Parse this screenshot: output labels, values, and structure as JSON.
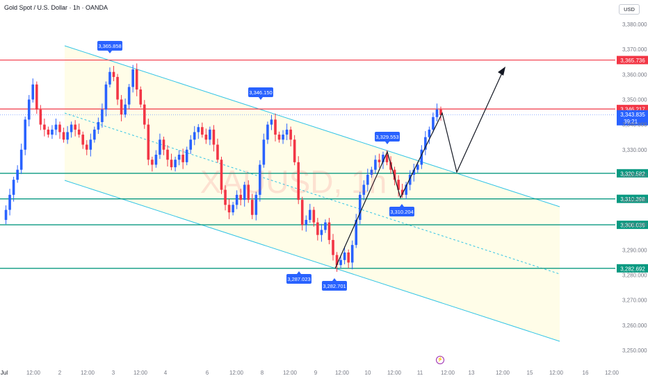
{
  "header": {
    "title": "Gold Spot / U.S. Dollar · 1h · OANDA",
    "currency_button": "USD"
  },
  "watermark": "XAUUSD, 1h",
  "colors": {
    "background": "#ffffff",
    "up": "#2962ff",
    "down": "#f23645",
    "channel": "#31c4e6",
    "channel_fill": "#fffde8",
    "red_line": "#f23645",
    "green_line": "#089981",
    "callout": "#2962ff",
    "axis_text": "#787b86",
    "grid": "#f0f3fa"
  },
  "chart_data": {
    "type": "candlestick",
    "y_axis_range": [
      3248,
      3389
    ],
    "y_ticks": [
      "3,380.000",
      "3,370.000",
      "3,360.000",
      "3,350.000",
      "3,340.000",
      "3,330.000",
      "3,320.000",
      "3,310.000",
      "3,300.000",
      "3,290.000",
      "3,280.000",
      "3,270.000",
      "3,260.000",
      "3,250.000"
    ],
    "x_ticks": [
      "Jul",
      "12:00",
      "2",
      "12:00",
      "3",
      "12:00",
      "4",
      "6",
      "12:00",
      "8",
      "12:00",
      "9",
      "12:00",
      "10",
      "12:00",
      "11",
      "12:00",
      "13",
      "12:00",
      "15",
      "12:00",
      "16",
      "12:00"
    ],
    "horizontal_levels": [
      {
        "value": 3365.736,
        "label": "3,365.736",
        "color": "red"
      },
      {
        "value": 3346.217,
        "label": "3,346.217",
        "color": "red"
      },
      {
        "value": 3320.582,
        "label": "3,320.582",
        "color": "green"
      },
      {
        "value": 3310.398,
        "label": "3,310.398",
        "color": "green"
      },
      {
        "value": 3300.039,
        "label": "3,300.039",
        "color": "green"
      },
      {
        "value": 3282.692,
        "label": "3,282.692",
        "color": "green"
      }
    ],
    "current_price": {
      "value": 3343.835,
      "label": "3,343.835",
      "countdown": "39:21"
    },
    "annotations": [
      {
        "label": "3,365.858",
        "value": 3365.858
      },
      {
        "label": "3,346.150",
        "value": 3346.15
      },
      {
        "label": "3,329.553",
        "value": 3329.553
      },
      {
        "label": "3,310.204",
        "value": 3310.204
      },
      {
        "label": "3,287.023",
        "value": 3287.023
      },
      {
        "label": "3,282.701",
        "value": 3282.701
      }
    ],
    "price_path": [
      3302,
      3306,
      3312,
      3318,
      3322,
      3330,
      3342,
      3350,
      3356,
      3346,
      3340,
      3338,
      3336,
      3338,
      3340,
      3337,
      3334,
      3337,
      3340,
      3338,
      3336,
      3332,
      3330,
      3334,
      3338,
      3341,
      3346,
      3356,
      3361,
      3359,
      3350,
      3344,
      3348,
      3355,
      3362,
      3354,
      3348,
      3340,
      3326,
      3324,
      3328,
      3334,
      3330,
      3326,
      3323,
      3326,
      3328,
      3325,
      3330,
      3334,
      3337,
      3339,
      3336,
      3334,
      3338,
      3332,
      3326,
      3314,
      3308,
      3305,
      3308,
      3312,
      3310,
      3316,
      3310,
      3304,
      3312,
      3324,
      3334,
      3340,
      3342,
      3336,
      3334,
      3336,
      3338,
      3334,
      3325,
      3310,
      3300,
      3302,
      3306,
      3301,
      3296,
      3298,
      3301,
      3294,
      3288,
      3284,
      3286,
      3289,
      3285,
      3292,
      3302,
      3312,
      3316,
      3320,
      3322,
      3326,
      3325,
      3328,
      3325,
      3322,
      3318,
      3314,
      3312,
      3316,
      3320,
      3322,
      3324,
      3330,
      3335,
      3338,
      3343,
      3346,
      3343.8
    ]
  }
}
